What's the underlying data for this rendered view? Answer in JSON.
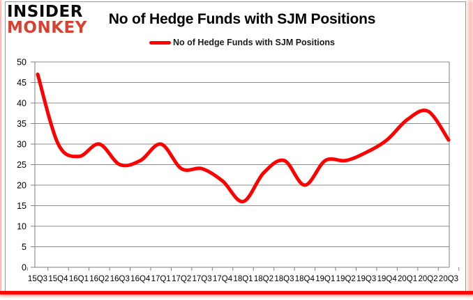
{
  "logo": {
    "line1": "INSIDER",
    "line2": "MONKEY"
  },
  "header": {
    "title": "No of Hedge Funds with SJM Positions"
  },
  "legend": {
    "label": "No of Hedge Funds with SJM Positions"
  },
  "chart_data": {
    "type": "line",
    "smoothed": true,
    "title": "No of Hedge Funds with SJM Positions",
    "xlabel": "",
    "ylabel": "",
    "legend_position": "top-center",
    "grid": true,
    "ylim": [
      0,
      50
    ],
    "ytick_step": 5,
    "categories": [
      "15Q3",
      "15Q4",
      "16Q1",
      "16Q2",
      "16Q3",
      "16Q4",
      "17Q1",
      "17Q2",
      "17Q3",
      "17Q4",
      "18Q1",
      "18Q2",
      "18Q3",
      "18Q4",
      "19Q1",
      "19Q2",
      "19Q3",
      "19Q4",
      "20Q1",
      "20Q2",
      "20Q3"
    ],
    "series": [
      {
        "name": "No of Hedge Funds with SJM Positions",
        "values": [
          47,
          30,
          27,
          30,
          25,
          26,
          30,
          24,
          24,
          21,
          16,
          23,
          26,
          20,
          26,
          26,
          28,
          31,
          36,
          38,
          31
        ]
      }
    ]
  },
  "colors": {
    "line": "#ff0000",
    "logo_accent": "#d8412f",
    "logo_text": "#0b0b0b",
    "grid": "#8c8c8c",
    "axis": "#7f7f7f",
    "text": "#000000",
    "border_red": "#ff0000"
  }
}
